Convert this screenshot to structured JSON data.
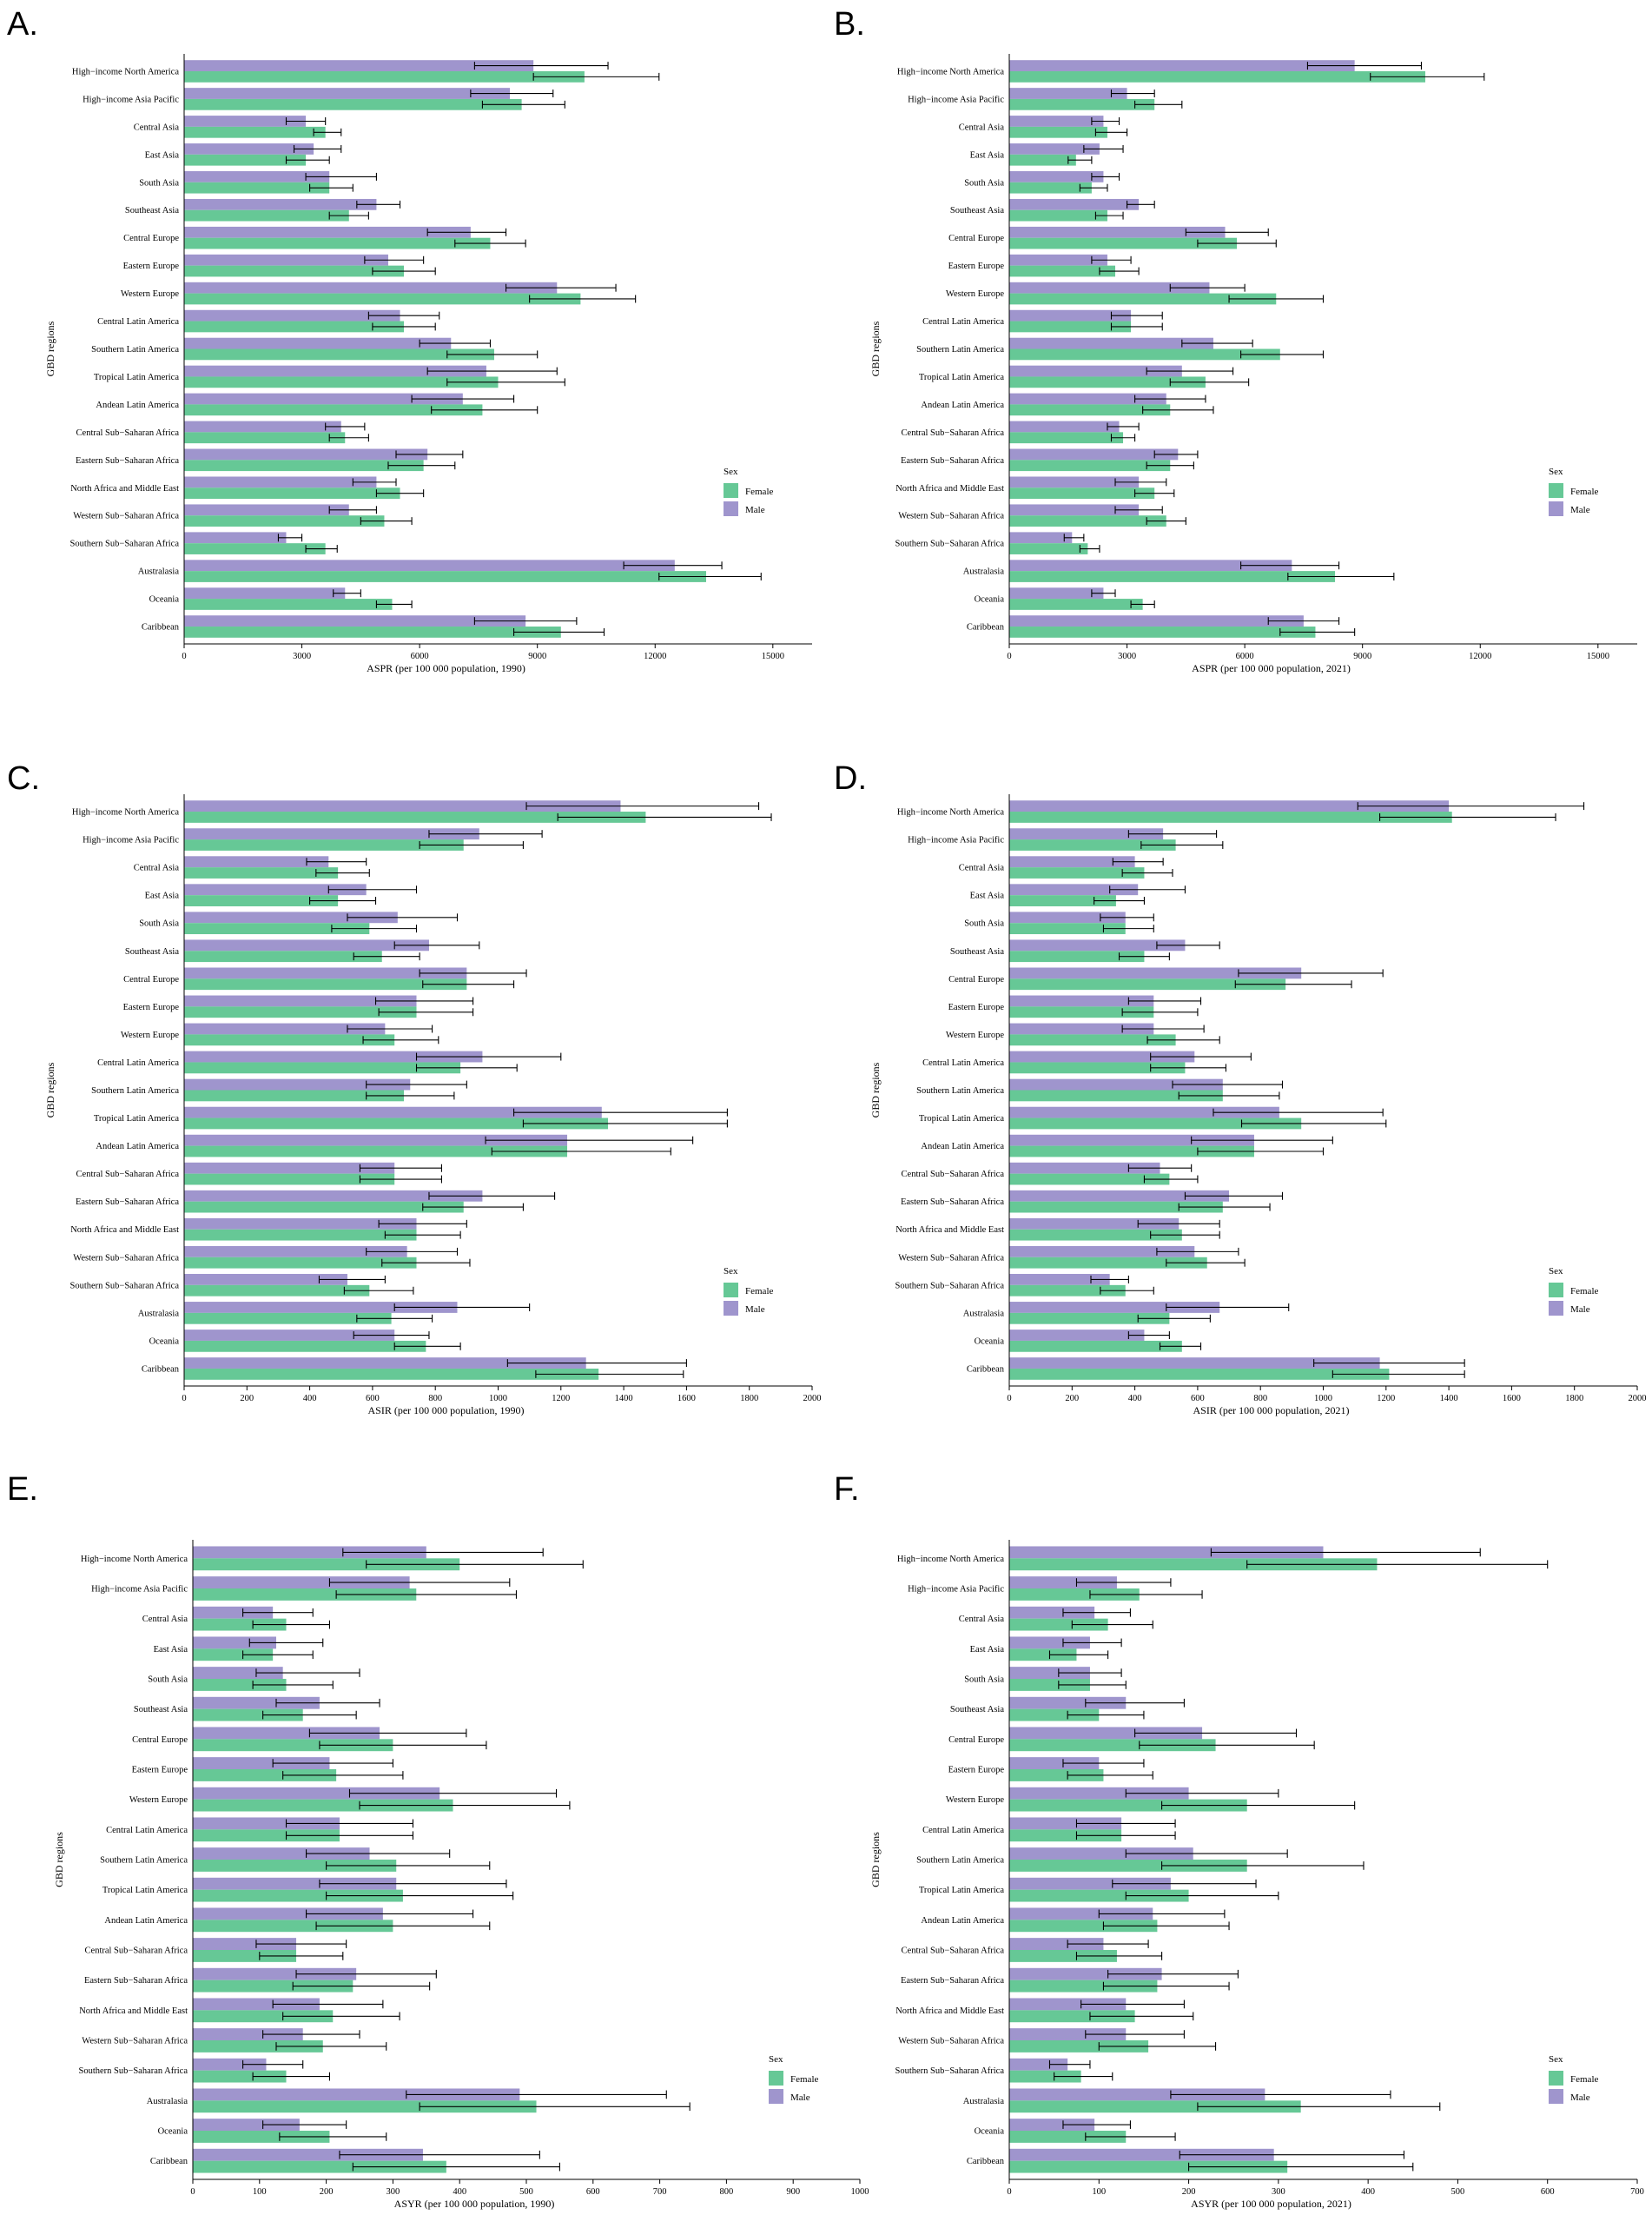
{
  "colors": {
    "female": "#66c896",
    "male": "#9f95cd",
    "axis": "#000000"
  },
  "legend_title": "Sex",
  "legend_labels": [
    "Female",
    "Male"
  ],
  "ylabel": "GBD regions",
  "categories": [
    "High−income North America",
    "High−income Asia Pacific",
    "Central Asia",
    "East Asia",
    "South Asia",
    "Southeast Asia",
    "Central Europe",
    "Eastern Europe",
    "Western Europe",
    "Central Latin America",
    "Southern Latin America",
    "Tropical Latin America",
    "Andean Latin America",
    "Central Sub−Saharan Africa",
    "Eastern Sub−Saharan Africa",
    "North Africa and Middle East",
    "Western Sub−Saharan Africa",
    "Southern Sub−Saharan Africa",
    "Australasia",
    "Oceania",
    "Caribbean"
  ],
  "chart_data": [
    {
      "panel": "A.",
      "type": "bar",
      "orientation": "horizontal",
      "xlabel": "ASPR (per 100 000 population, 1990)",
      "ylabel": "GBD regions",
      "xlim": [
        0,
        16000
      ],
      "ticks": [
        0,
        3000,
        6000,
        9000,
        12000,
        15000
      ],
      "series": [
        {
          "name": "Male",
          "values": [
            8900,
            8300,
            3100,
            3300,
            3700,
            4900,
            7300,
            5200,
            9500,
            5500,
            6800,
            7700,
            7100,
            4000,
            6200,
            4900,
            4200,
            2600,
            12500,
            4100,
            8700
          ],
          "lower": [
            7400,
            7300,
            2600,
            2800,
            3100,
            4400,
            6200,
            4600,
            8200,
            4700,
            6000,
            6200,
            5800,
            3600,
            5400,
            4300,
            3700,
            2400,
            11200,
            3800,
            7400
          ],
          "upper": [
            10800,
            9400,
            3600,
            4000,
            4900,
            5500,
            8200,
            6100,
            11000,
            6500,
            7800,
            9500,
            8400,
            4600,
            7100,
            5400,
            4900,
            3000,
            13700,
            4500,
            10000
          ]
        },
        {
          "name": "Female",
          "values": [
            10200,
            8600,
            3600,
            3100,
            3700,
            4200,
            7800,
            5600,
            10100,
            5600,
            7900,
            8000,
            7600,
            4100,
            6100,
            5500,
            5100,
            3600,
            13300,
            5300,
            9600
          ],
          "lower": [
            8900,
            7600,
            3300,
            2600,
            3200,
            3700,
            6900,
            4800,
            8800,
            4800,
            6700,
            6700,
            6300,
            3700,
            5200,
            4900,
            4500,
            3100,
            12100,
            4900,
            8400
          ],
          "upper": [
            12100,
            9700,
            4000,
            3700,
            4300,
            4700,
            8700,
            6400,
            11500,
            6400,
            9000,
            9700,
            9000,
            4700,
            6900,
            6100,
            5800,
            3900,
            14700,
            5800,
            10700
          ]
        }
      ]
    },
    {
      "panel": "B.",
      "type": "bar",
      "orientation": "horizontal",
      "xlabel": "ASPR (per 100 000 population, 2021)",
      "ylabel": "GBD regions",
      "xlim": [
        0,
        16000
      ],
      "ticks": [
        0,
        3000,
        6000,
        9000,
        12000,
        15000
      ],
      "series": [
        {
          "name": "Male",
          "values": [
            8800,
            3000,
            2400,
            2300,
            2400,
            3300,
            5500,
            2500,
            5100,
            3100,
            5200,
            4400,
            4000,
            2800,
            4300,
            3300,
            3300,
            1600,
            7200,
            2400,
            7500
          ],
          "lower": [
            7600,
            2600,
            2100,
            1900,
            2100,
            3000,
            4500,
            2100,
            4100,
            2600,
            4400,
            3500,
            3200,
            2500,
            3700,
            2700,
            2700,
            1400,
            5900,
            2100,
            6600
          ],
          "upper": [
            10500,
            3700,
            2800,
            2900,
            2800,
            3700,
            6600,
            3100,
            6000,
            3900,
            6200,
            5700,
            5000,
            3300,
            4800,
            4000,
            3900,
            1900,
            8400,
            2700,
            8400
          ]
        },
        {
          "name": "Female",
          "values": [
            10600,
            3700,
            2500,
            1700,
            2100,
            2500,
            5800,
            2700,
            6800,
            3100,
            6900,
            5000,
            4100,
            2900,
            4100,
            3700,
            4000,
            2000,
            8300,
            3400,
            7800
          ],
          "lower": [
            9200,
            3200,
            2200,
            1500,
            1800,
            2200,
            4800,
            2300,
            5600,
            2600,
            5900,
            4100,
            3400,
            2600,
            3500,
            3200,
            3500,
            1800,
            7100,
            3100,
            6900
          ],
          "upper": [
            12100,
            4400,
            3000,
            2100,
            2500,
            2900,
            6800,
            3300,
            8000,
            3900,
            8000,
            6100,
            5200,
            3200,
            4700,
            4200,
            4500,
            2300,
            9800,
            3700,
            8800
          ]
        }
      ]
    },
    {
      "panel": "C.",
      "type": "bar",
      "orientation": "horizontal",
      "xlabel": "ASIR (per 100 000 population, 1990)",
      "ylabel": "GBD regions",
      "xlim": [
        0,
        2000
      ],
      "ticks": [
        0,
        200,
        400,
        600,
        800,
        1000,
        1200,
        1400,
        1600,
        1800,
        2000
      ],
      "series": [
        {
          "name": "Male",
          "values": [
            1390,
            940,
            460,
            580,
            680,
            780,
            900,
            740,
            640,
            950,
            720,
            1330,
            1220,
            670,
            950,
            740,
            710,
            520,
            870,
            670,
            1280
          ],
          "lower": [
            1090,
            780,
            390,
            460,
            520,
            670,
            750,
            610,
            520,
            740,
            580,
            1050,
            960,
            560,
            780,
            620,
            580,
            430,
            670,
            540,
            1030
          ],
          "upper": [
            1830,
            1140,
            580,
            740,
            870,
            940,
            1090,
            920,
            790,
            1200,
            900,
            1730,
            1620,
            820,
            1180,
            900,
            870,
            640,
            1100,
            780,
            1600
          ]
        },
        {
          "name": "Female",
          "values": [
            1470,
            890,
            490,
            490,
            590,
            630,
            900,
            740,
            670,
            880,
            700,
            1350,
            1220,
            670,
            890,
            740,
            740,
            590,
            660,
            770,
            1320
          ],
          "lower": [
            1190,
            750,
            420,
            400,
            470,
            540,
            760,
            620,
            570,
            740,
            580,
            1080,
            980,
            560,
            760,
            640,
            630,
            510,
            550,
            670,
            1120
          ],
          "upper": [
            1870,
            1080,
            590,
            610,
            740,
            750,
            1050,
            920,
            810,
            1060,
            860,
            1730,
            1550,
            820,
            1080,
            880,
            910,
            730,
            790,
            880,
            1590
          ]
        }
      ]
    },
    {
      "panel": "D.",
      "type": "bar",
      "orientation": "horizontal",
      "xlabel": "ASIR (per 100 000 population, 2021)",
      "ylabel": "GBD regions",
      "xlim": [
        0,
        2000
      ],
      "ticks": [
        0,
        200,
        400,
        600,
        800,
        1000,
        1200,
        1400,
        1600,
        1800,
        2000
      ],
      "series": [
        {
          "name": "Male",
          "values": [
            1400,
            490,
            400,
            410,
            370,
            560,
            930,
            460,
            460,
            590,
            680,
            860,
            780,
            480,
            700,
            540,
            590,
            320,
            670,
            430,
            1180
          ],
          "lower": [
            1110,
            380,
            330,
            320,
            290,
            470,
            730,
            380,
            360,
            450,
            520,
            650,
            580,
            380,
            560,
            410,
            470,
            260,
            500,
            380,
            970
          ],
          "upper": [
            1830,
            660,
            490,
            560,
            460,
            670,
            1190,
            610,
            620,
            770,
            870,
            1190,
            1030,
            580,
            870,
            670,
            730,
            380,
            890,
            510,
            1450
          ]
        },
        {
          "name": "Female",
          "values": [
            1410,
            530,
            430,
            340,
            370,
            430,
            880,
            460,
            530,
            560,
            680,
            930,
            780,
            510,
            680,
            550,
            630,
            370,
            510,
            550,
            1210
          ],
          "lower": [
            1180,
            420,
            360,
            270,
            300,
            350,
            720,
            360,
            440,
            450,
            540,
            740,
            600,
            430,
            540,
            450,
            500,
            290,
            410,
            480,
            1030
          ],
          "upper": [
            1740,
            680,
            520,
            430,
            460,
            510,
            1090,
            600,
            670,
            690,
            860,
            1200,
            1000,
            600,
            830,
            670,
            750,
            460,
            640,
            610,
            1450
          ]
        }
      ]
    },
    {
      "panel": "E.",
      "type": "bar",
      "orientation": "horizontal",
      "xlabel": "ASYR (per 100 000 population, 1990)",
      "ylabel": "GBD regions",
      "xlim": [
        0,
        1000
      ],
      "ticks": [
        0,
        100,
        200,
        300,
        400,
        500,
        600,
        700,
        800,
        900,
        1000
      ],
      "series": [
        {
          "name": "Male",
          "values": [
            350,
            325,
            120,
            125,
            135,
            190,
            280,
            205,
            370,
            220,
            265,
            305,
            285,
            155,
            245,
            190,
            165,
            110,
            490,
            160,
            345
          ],
          "lower": [
            225,
            205,
            75,
            85,
            95,
            125,
            175,
            120,
            235,
            140,
            170,
            190,
            170,
            95,
            155,
            120,
            105,
            75,
            320,
            105,
            220
          ],
          "upper": [
            525,
            475,
            180,
            195,
            250,
            280,
            410,
            300,
            545,
            330,
            385,
            470,
            420,
            230,
            365,
            285,
            250,
            165,
            710,
            230,
            520
          ]
        },
        {
          "name": "Female",
          "values": [
            400,
            335,
            140,
            120,
            140,
            165,
            300,
            215,
            390,
            220,
            305,
            315,
            300,
            155,
            240,
            210,
            195,
            140,
            515,
            205,
            380
          ],
          "lower": [
            260,
            215,
            90,
            75,
            90,
            105,
            190,
            135,
            250,
            140,
            200,
            200,
            185,
            100,
            150,
            135,
            125,
            90,
            340,
            130,
            240
          ],
          "upper": [
            585,
            485,
            205,
            180,
            210,
            245,
            440,
            315,
            565,
            330,
            445,
            480,
            445,
            225,
            355,
            310,
            290,
            205,
            745,
            290,
            550
          ]
        }
      ]
    },
    {
      "panel": "F.",
      "type": "bar",
      "orientation": "horizontal",
      "xlabel": "ASYR (per 100 000 population, 2021)",
      "ylabel": "GBD regions",
      "xlim": [
        0,
        700
      ],
      "ticks": [
        0,
        100,
        200,
        300,
        400,
        500,
        600,
        700
      ],
      "series": [
        {
          "name": "Male",
          "values": [
            350,
            120,
            95,
            90,
            90,
            130,
            215,
            100,
            200,
            125,
            205,
            180,
            160,
            105,
            170,
            130,
            130,
            65,
            285,
            95,
            295
          ],
          "lower": [
            225,
            75,
            60,
            60,
            55,
            85,
            140,
            60,
            130,
            75,
            130,
            115,
            100,
            65,
            110,
            80,
            85,
            45,
            180,
            60,
            190
          ],
          "upper": [
            525,
            180,
            135,
            125,
            125,
            195,
            320,
            150,
            300,
            185,
            310,
            275,
            240,
            155,
            255,
            195,
            195,
            90,
            425,
            135,
            440
          ]
        },
        {
          "name": "Female",
          "values": [
            410,
            145,
            110,
            75,
            90,
            100,
            230,
            105,
            265,
            125,
            265,
            200,
            165,
            120,
            165,
            140,
            155,
            80,
            325,
            130,
            310
          ],
          "lower": [
            265,
            90,
            70,
            45,
            55,
            65,
            145,
            65,
            170,
            75,
            170,
            130,
            105,
            75,
            105,
            90,
            100,
            50,
            210,
            85,
            200
          ],
          "upper": [
            600,
            215,
            160,
            110,
            130,
            150,
            340,
            160,
            385,
            185,
            395,
            300,
            245,
            170,
            245,
            205,
            230,
            115,
            480,
            185,
            450
          ]
        }
      ]
    }
  ]
}
